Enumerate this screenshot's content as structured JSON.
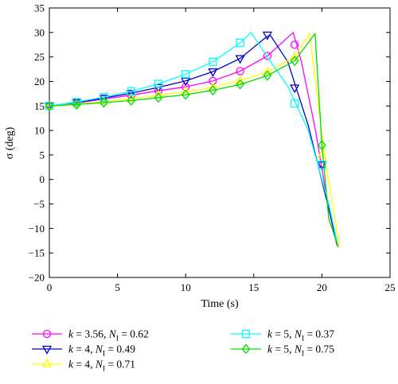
{
  "chart_data": {
    "type": "line",
    "xlabel": "Time (s)",
    "ylabel": "σ (deg)",
    "xlim": [
      0,
      25
    ],
    "ylim": [
      -20,
      35
    ],
    "xticks": [
      "0",
      "5",
      "10",
      "15",
      "20",
      "25"
    ],
    "yticks": [
      "−20",
      "−15",
      "−10",
      "−5",
      "0",
      "5",
      "10",
      "15",
      "20",
      "25",
      "30",
      "35"
    ],
    "grid": false,
    "legend_placement": "below",
    "series": [
      {
        "name": "k = 3.56, N_I = 0.62",
        "legend_k": "3.56",
        "legend_n": "0.62",
        "color": "#ff00ff",
        "marker": "circle",
        "x": [
          0,
          2,
          4,
          6,
          8,
          10,
          12,
          14,
          16,
          17.9,
          18.5,
          19.5,
          20.5,
          21.1
        ],
        "y": [
          15,
          15.6,
          16.4,
          17.2,
          18.1,
          18.9,
          20.1,
          22.1,
          25.2,
          30,
          24,
          10.5,
          -6,
          -13.5
        ],
        "markers": [
          [
            0,
            15
          ],
          [
            2,
            15.6
          ],
          [
            4,
            16.4
          ],
          [
            6,
            17.2
          ],
          [
            8,
            18.1
          ],
          [
            10,
            18.9
          ],
          [
            12,
            20.1
          ],
          [
            14,
            22.1
          ],
          [
            16,
            25.2
          ],
          [
            18,
            27.5
          ],
          [
            20,
            3
          ]
        ]
      },
      {
        "name": "k = 4, N_I = 0.49",
        "legend_k": "4",
        "legend_n": "0.49",
        "color": "#0000cc",
        "marker": "triangle-down",
        "x": [
          0,
          2,
          4,
          6,
          8,
          10,
          12,
          14,
          15.8,
          16.2,
          17.5,
          19,
          20.5,
          21.2
        ],
        "y": [
          15,
          15.7,
          16.6,
          17.6,
          18.8,
          20.1,
          22,
          24.7,
          28.8,
          29.5,
          24,
          11,
          -6,
          -13.8
        ],
        "markers": [
          [
            0,
            15
          ],
          [
            2,
            15.7
          ],
          [
            4,
            16.6
          ],
          [
            6,
            17.6
          ],
          [
            8,
            18.8
          ],
          [
            10,
            20.1
          ],
          [
            12,
            22
          ],
          [
            14,
            24.7
          ],
          [
            16,
            29.5
          ],
          [
            18,
            18.7
          ],
          [
            20,
            3
          ]
        ]
      },
      {
        "name": "k = 4, N_I = 0.71",
        "legend_k": "4",
        "legend_n": "0.71",
        "color": "#ffff00",
        "marker": "triangle-up",
        "x": [
          0,
          2,
          4,
          6,
          8,
          10,
          12,
          14,
          16,
          18,
          19.1,
          19.6,
          20.3,
          21.3
        ],
        "y": [
          15,
          15.4,
          15.9,
          16.5,
          17.2,
          17.9,
          18.8,
          20.2,
          22,
          25,
          29.8,
          18,
          3,
          -13.8
        ],
        "markers": [
          [
            0,
            15
          ],
          [
            2,
            15.4
          ],
          [
            4,
            15.9
          ],
          [
            6,
            16.5
          ],
          [
            8,
            17.2
          ],
          [
            10,
            17.9
          ],
          [
            12,
            18.8
          ],
          [
            14,
            20.2
          ],
          [
            16,
            22
          ],
          [
            18,
            25
          ],
          [
            20,
            5
          ]
        ]
      },
      {
        "name": "k = 5, N_I = 0.37",
        "legend_k": "5",
        "legend_n": "0.37",
        "color": "#00ffff",
        "marker": "square",
        "x": [
          0,
          2,
          4,
          6,
          8,
          10,
          12,
          14,
          14.8,
          16,
          17.5,
          19,
          20.5,
          21.2
        ],
        "y": [
          15,
          15.8,
          16.8,
          18,
          19.5,
          21.5,
          24,
          27.9,
          30,
          25,
          19,
          10,
          -5,
          -13.8
        ],
        "markers": [
          [
            0,
            15
          ],
          [
            2,
            15.8
          ],
          [
            4,
            16.8
          ],
          [
            6,
            18
          ],
          [
            8,
            19.5
          ],
          [
            10,
            21.5
          ],
          [
            12,
            24
          ],
          [
            14,
            27.9
          ],
          [
            18,
            15.5
          ],
          [
            20,
            3
          ]
        ]
      },
      {
        "name": "k = 5, N_I = 0.75",
        "legend_k": "5",
        "legend_n": "0.75",
        "color": "#00dd00",
        "marker": "diamond",
        "x": [
          0,
          2,
          4,
          6,
          8,
          10,
          12,
          14,
          16,
          18,
          19.5,
          20,
          20.5,
          21.2
        ],
        "y": [
          15,
          15.3,
          15.7,
          16.1,
          16.7,
          17.3,
          18.2,
          19.4,
          21.2,
          24.2,
          29.8,
          7,
          -8,
          -13.8
        ],
        "markers": [
          [
            0,
            15
          ],
          [
            2,
            15.3
          ],
          [
            4,
            15.7
          ],
          [
            6,
            16.1
          ],
          [
            8,
            16.7
          ],
          [
            10,
            17.3
          ],
          [
            12,
            18.2
          ],
          [
            14,
            19.4
          ],
          [
            16,
            21.2
          ],
          [
            18,
            24.2
          ],
          [
            20,
            7
          ]
        ]
      }
    ]
  }
}
